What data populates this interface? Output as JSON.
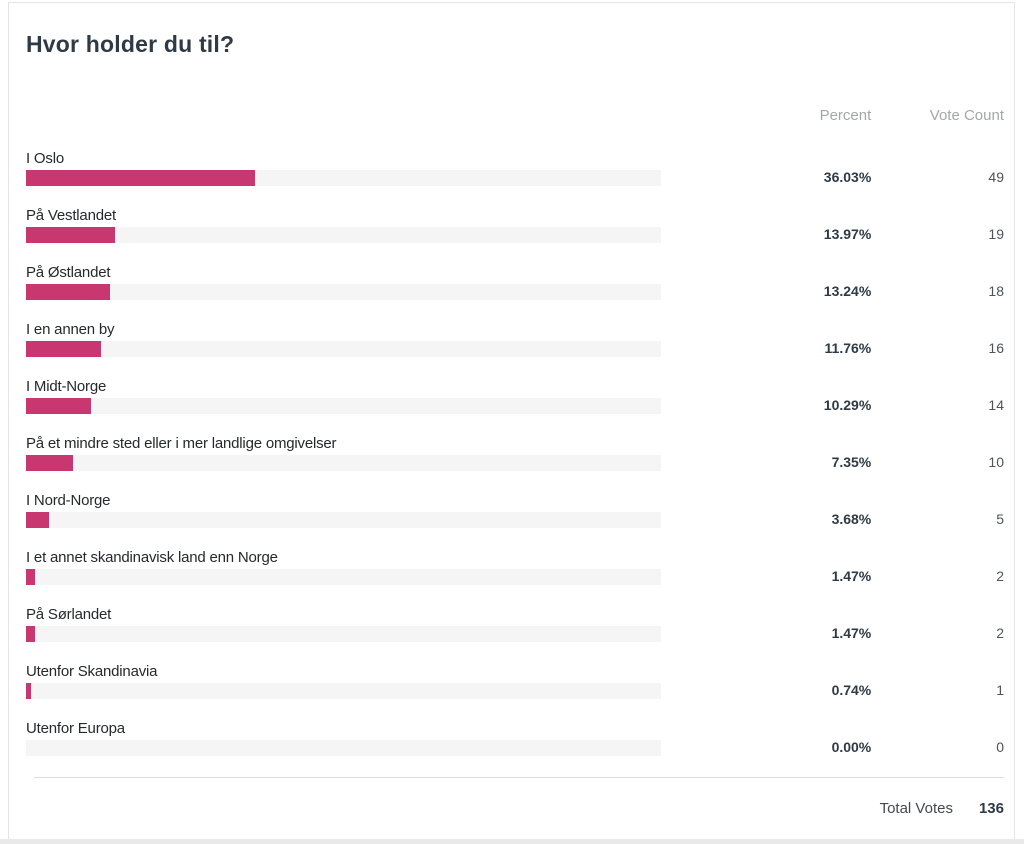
{
  "card": {
    "title": "Hvor holder du til?",
    "columns": {
      "percent": "Percent",
      "vote_count": "Vote Count"
    },
    "rows": [
      {
        "label": "I Oslo",
        "percent": "36.03%",
        "count": "49",
        "pct": 36.03
      },
      {
        "label": "På Vestlandet",
        "percent": "13.97%",
        "count": "19",
        "pct": 13.97
      },
      {
        "label": "På Østlandet",
        "percent": "13.24%",
        "count": "18",
        "pct": 13.24
      },
      {
        "label": "I en annen by",
        "percent": "11.76%",
        "count": "16",
        "pct": 11.76
      },
      {
        "label": "I Midt-Norge",
        "percent": "10.29%",
        "count": "14",
        "pct": 10.29
      },
      {
        "label": "På et mindre sted eller i mer landlige omgivelser",
        "percent": "7.35%",
        "count": "10",
        "pct": 7.35
      },
      {
        "label": "I Nord-Norge",
        "percent": "3.68%",
        "count": "5",
        "pct": 3.68
      },
      {
        "label": "I et annet skandinavisk land enn Norge",
        "percent": "1.47%",
        "count": "2",
        "pct": 1.47
      },
      {
        "label": "På Sørlandet",
        "percent": "1.47%",
        "count": "2",
        "pct": 1.47
      },
      {
        "label": "Utenfor Skandinavia",
        "percent": "0.74%",
        "count": "1",
        "pct": 0.74
      },
      {
        "label": "Utenfor Europa",
        "percent": "0.00%",
        "count": "0",
        "pct": 0
      }
    ],
    "total": {
      "label": "Total Votes",
      "value": "136"
    }
  },
  "colors": {
    "bar_fill": "#c83770",
    "bar_track": "#f5f5f5",
    "title_text": "#2e3a45",
    "muted_header": "#a2a7ac"
  },
  "chart_data": {
    "type": "bar",
    "orientation": "horizontal",
    "title": "Hvor holder du til?",
    "categories": [
      "I Oslo",
      "På Vestlandet",
      "På Østlandet",
      "I en annen by",
      "I Midt-Norge",
      "På et mindre sted eller i mer landlige omgivelser",
      "I Nord-Norge",
      "I et annet skandinavisk land enn Norge",
      "På Sørlandet",
      "Utenfor Skandinavia",
      "Utenfor Europa"
    ],
    "series": [
      {
        "name": "Percent",
        "values": [
          36.03,
          13.97,
          13.24,
          11.76,
          10.29,
          7.35,
          3.68,
          1.47,
          1.47,
          0.74,
          0.0
        ]
      },
      {
        "name": "Vote Count",
        "values": [
          49,
          19,
          18,
          16,
          14,
          10,
          5,
          2,
          2,
          1,
          0
        ]
      }
    ],
    "xlim": [
      0,
      100
    ],
    "legend": false,
    "grid": false,
    "total_votes": 136
  }
}
